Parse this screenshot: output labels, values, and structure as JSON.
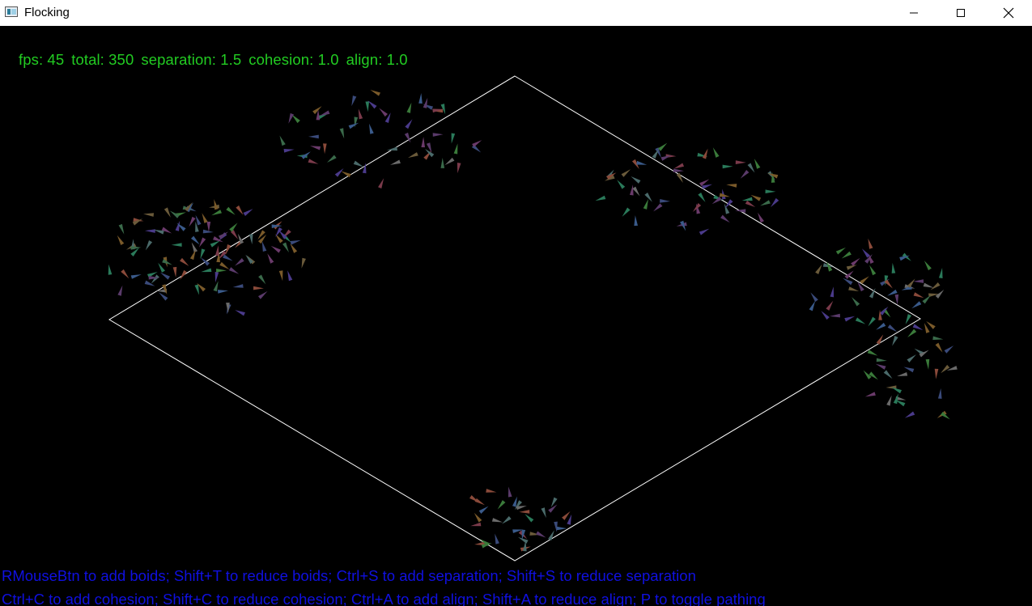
{
  "window": {
    "title": "Flocking",
    "minimize_icon": "minimize-icon",
    "maximize_icon": "maximize-icon",
    "close_icon": "close-icon"
  },
  "stats": {
    "fps": "fps: 45",
    "total": "total: 350",
    "separation": "separation: 1.5",
    "cohesion": "cohesion: 1.0",
    "align": "align: 1.0"
  },
  "help": {
    "line1": "RMouseBtn to add boids; Shift+T to reduce boids; Ctrl+S to add separation; Shift+S to reduce separation",
    "line2": "Ctrl+C to add cohesion; Shift+C to reduce cohesion; Ctrl+A to add align; Shift+A to reduce align; P to toggle pathing"
  },
  "colors": {
    "background": "#000000",
    "stats_text": "#22cc22",
    "help_text": "#1010e0",
    "path_line": "#ffffff"
  }
}
